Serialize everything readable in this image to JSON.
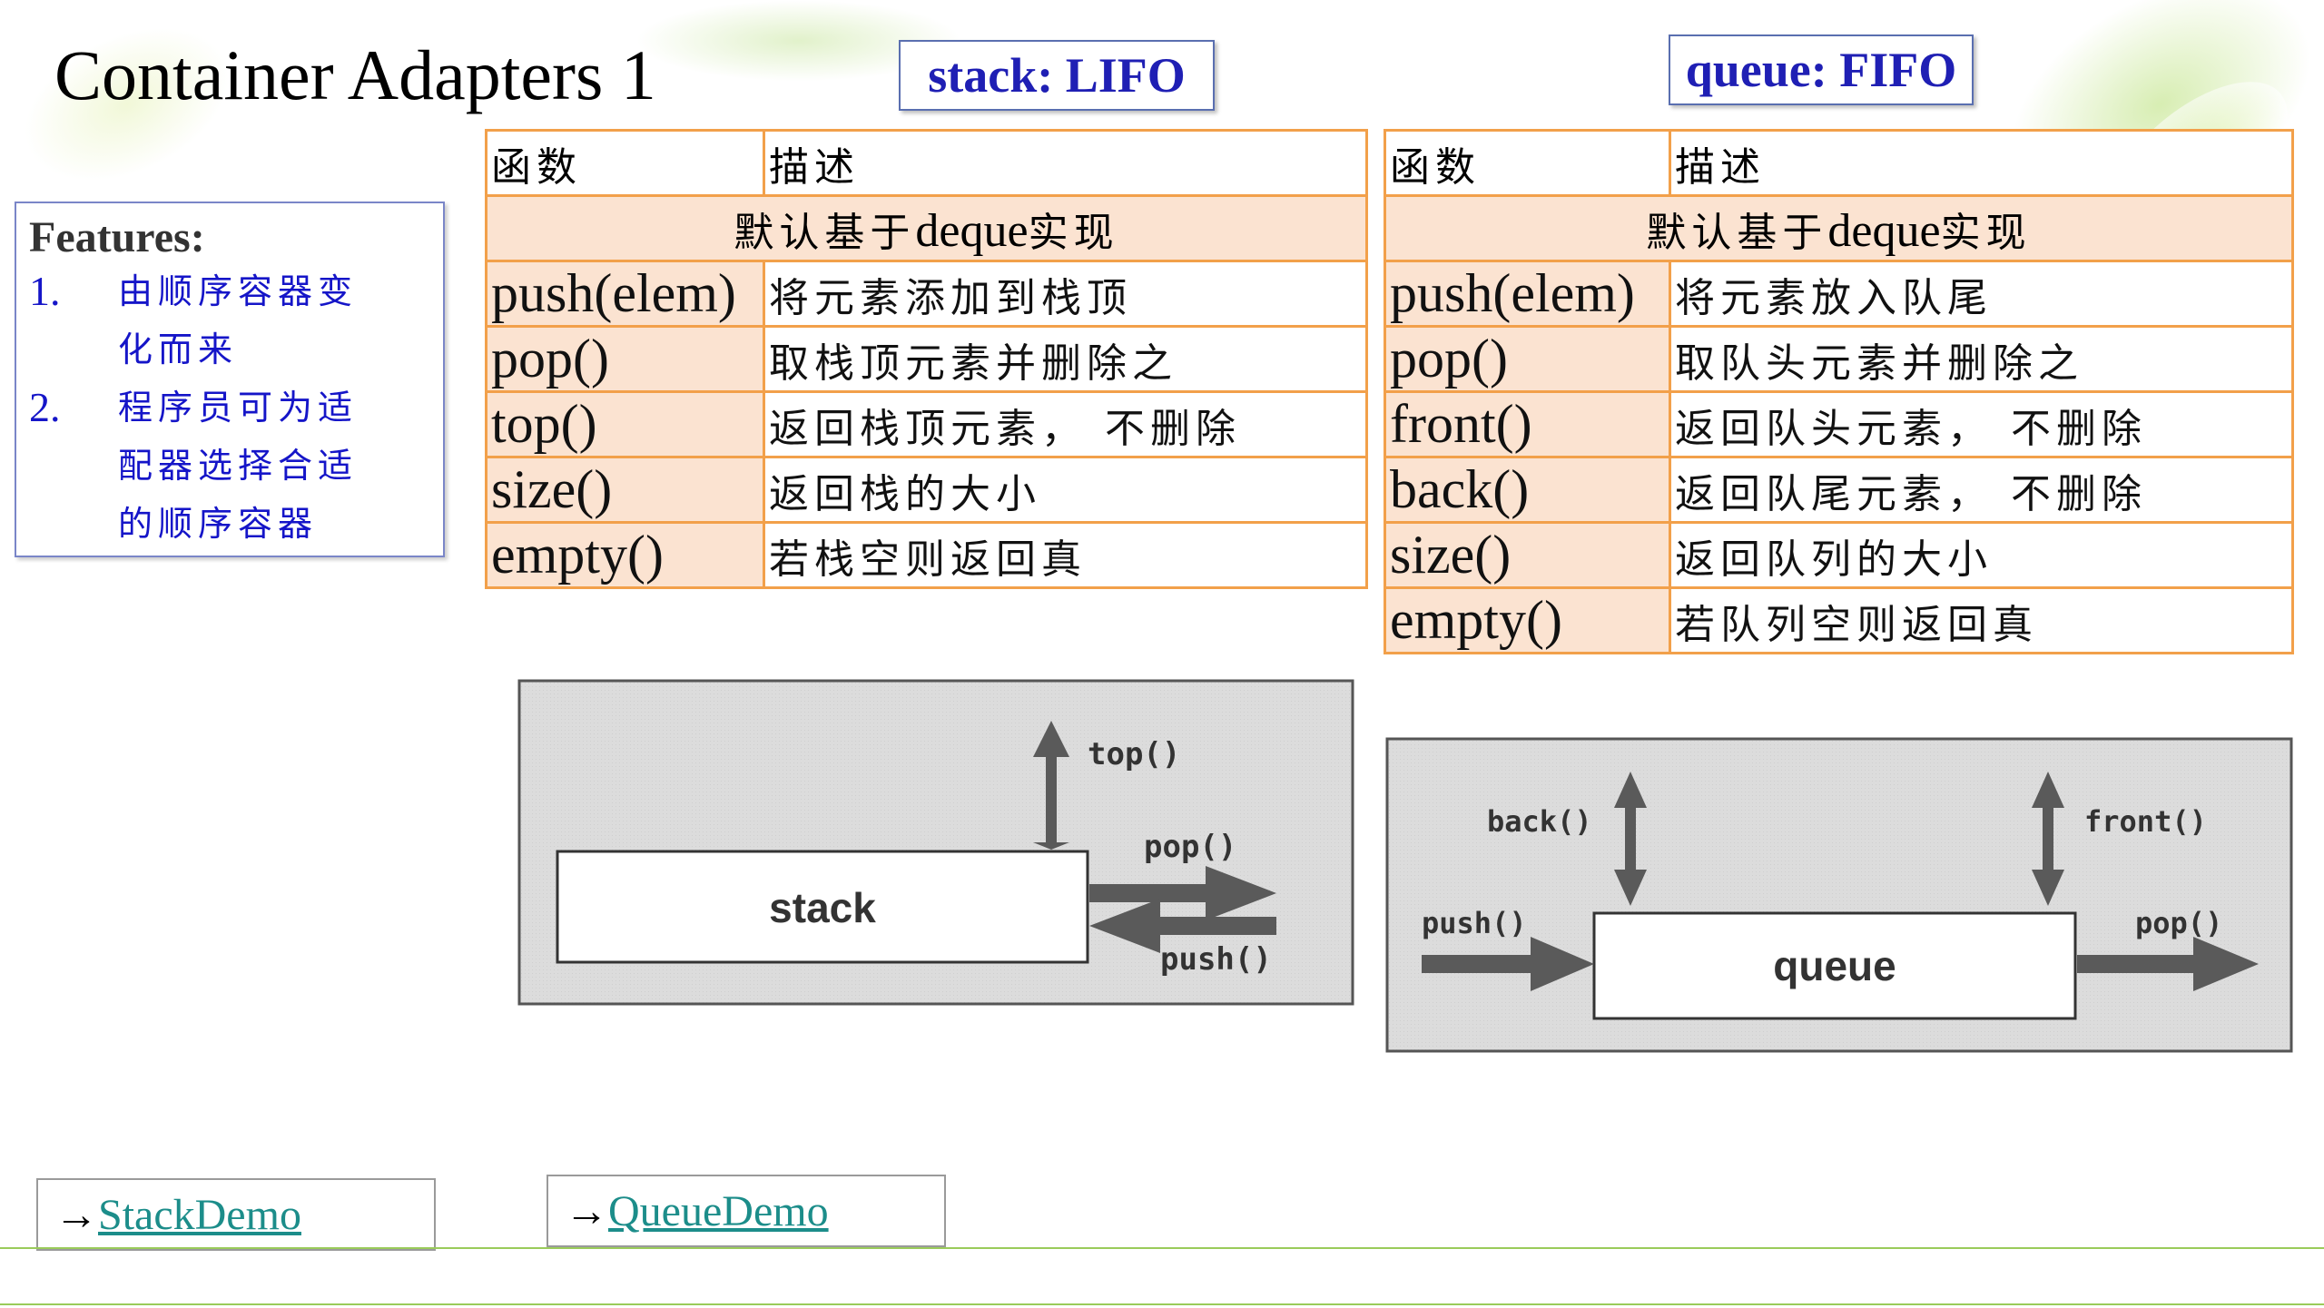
{
  "title": "Container Adapters 1",
  "stack_tag": "stack: LIFO",
  "queue_tag": "queue: FIFO",
  "features": {
    "heading": "Features:",
    "items": [
      {
        "num": "1.",
        "lines": [
          "由顺序容器变",
          "化而来"
        ]
      },
      {
        "num": "2.",
        "lines": [
          "程序员可为适",
          "配器选择合适",
          "的顺序容器"
        ]
      }
    ]
  },
  "stack_table": {
    "header_fn": "函数",
    "header_desc": "描述",
    "impl_prefix": "默认基于",
    "impl_mid": "deque",
    "impl_suffix": "实现",
    "rows": [
      {
        "fn": "push(elem)",
        "desc": "将元素添加到栈顶"
      },
      {
        "fn": "pop()",
        "desc": "取栈顶元素并删除之"
      },
      {
        "fn": "top()",
        "desc": "返回栈顶元素， 不删除"
      },
      {
        "fn": "size()",
        "desc": "返回栈的大小"
      },
      {
        "fn": "empty()",
        "desc": "若栈空则返回真"
      }
    ]
  },
  "queue_table": {
    "header_fn": "函数",
    "header_desc": "描述",
    "impl_prefix": "默认基于",
    "impl_mid": "deque",
    "impl_suffix": "实现",
    "rows": [
      {
        "fn": "push(elem)",
        "desc": "将元素放入队尾"
      },
      {
        "fn": "pop()",
        "desc": "取队头元素并删除之"
      },
      {
        "fn": "front()",
        "desc": "返回队头元素， 不删除"
      },
      {
        "fn": "back()",
        "desc": "返回队尾元素， 不删除"
      },
      {
        "fn": "size()",
        "desc": "返回队列的大小"
      },
      {
        "fn": "empty()",
        "desc": "若队列空则返回真"
      }
    ]
  },
  "stack_diagram": {
    "box": "stack",
    "top": "top()",
    "pop": "pop()",
    "push": "push()"
  },
  "queue_diagram": {
    "box": "queue",
    "back": "back()",
    "front": "front()",
    "push": "push()",
    "pop": "pop()"
  },
  "links": {
    "arrow": "→",
    "stack_demo": "StackDemo",
    "queue_demo": "QueueDemo"
  },
  "colors": {
    "table_border": "#f2a04a",
    "table_fill": "#fbe3d1",
    "tag_text": "#1f1fb4",
    "link": "#1c8d8a",
    "feature_text": "#1515c8"
  }
}
